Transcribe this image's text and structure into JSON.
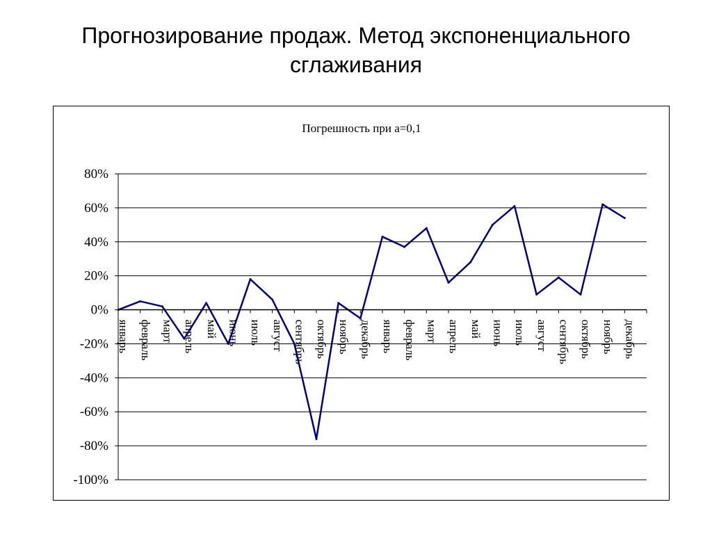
{
  "slide": {
    "title_line1": "Прогнозирование продаж. Метод экспоненциального",
    "title_line2": "сглаживания"
  },
  "colors": {
    "series": "#000080",
    "grid": "#000000",
    "background": "#ffffff"
  },
  "chart_data": {
    "type": "line",
    "title": "Погрешность при а=0,1",
    "xlabel": "",
    "ylabel": "",
    "y_unit": "%",
    "ylim": [
      -100,
      80
    ],
    "yticks": [
      80,
      60,
      40,
      20,
      0,
      -20,
      -40,
      -60,
      -80,
      -100
    ],
    "ytick_labels": [
      "80%",
      "60%",
      "40%",
      "20%",
      "0%",
      "-20%",
      "-40%",
      "-60%",
      "-80%",
      "-100%"
    ],
    "grid": true,
    "legend": "none",
    "categories": [
      "январь",
      "февраль",
      "март",
      "апрель",
      "май",
      "июнь",
      "июль",
      "август",
      "сентябрь",
      "октябрь",
      "ноябрь",
      "декабрь",
      "январь",
      "февраль",
      "март",
      "апрель",
      "май",
      "июнь",
      "июль",
      "август",
      "сентябрь",
      "октябрь",
      "ноябрь",
      "декабрь"
    ],
    "series": [
      {
        "values": [
          0,
          5,
          2,
          -17,
          4,
          -20,
          18,
          6,
          -20,
          -76,
          4,
          -5,
          43,
          37,
          48,
          16,
          28,
          50,
          61,
          9,
          19,
          9,
          62,
          54
        ]
      }
    ]
  }
}
